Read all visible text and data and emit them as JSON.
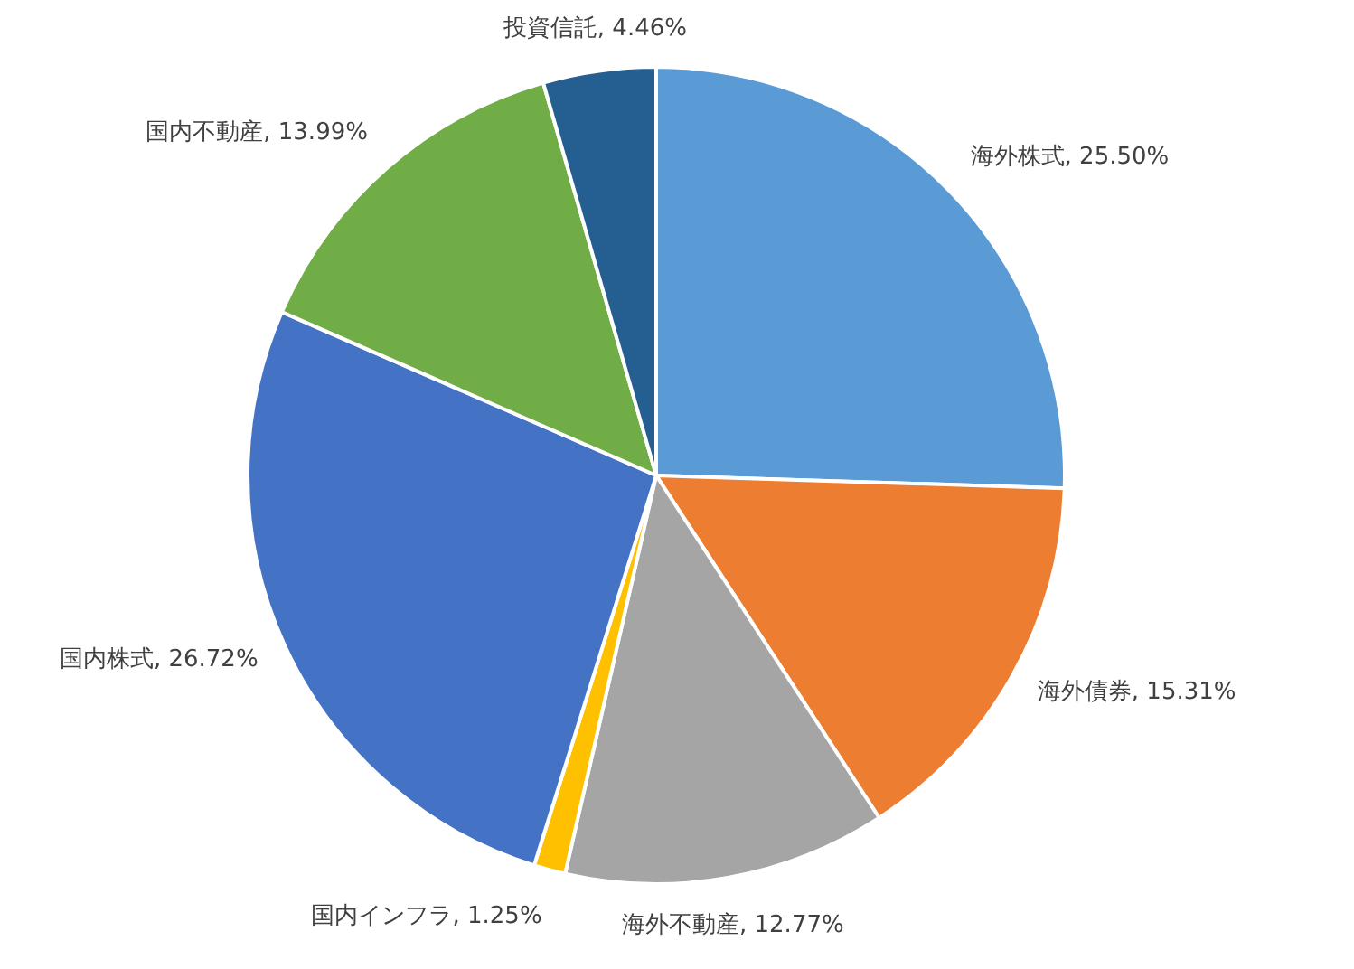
{
  "chart_data": {
    "type": "pie",
    "categories": [
      "海外株式",
      "海外債券",
      "海外不動産",
      "国内インフラ",
      "国内株式",
      "国内不動産",
      "投資信託"
    ],
    "values": [
      25.5,
      15.31,
      12.77,
      1.25,
      26.72,
      13.99,
      4.46
    ],
    "value_labels": [
      "25.50%",
      "15.31%",
      "12.77%",
      "1.25%",
      "26.72%",
      "13.99%",
      "4.46%"
    ],
    "colors": [
      "#5b9bd5",
      "#ed7d31",
      "#a5a5a5",
      "#ffc000",
      "#4472c4",
      "#70ad47",
      "#255e91"
    ],
    "legend": false
  }
}
